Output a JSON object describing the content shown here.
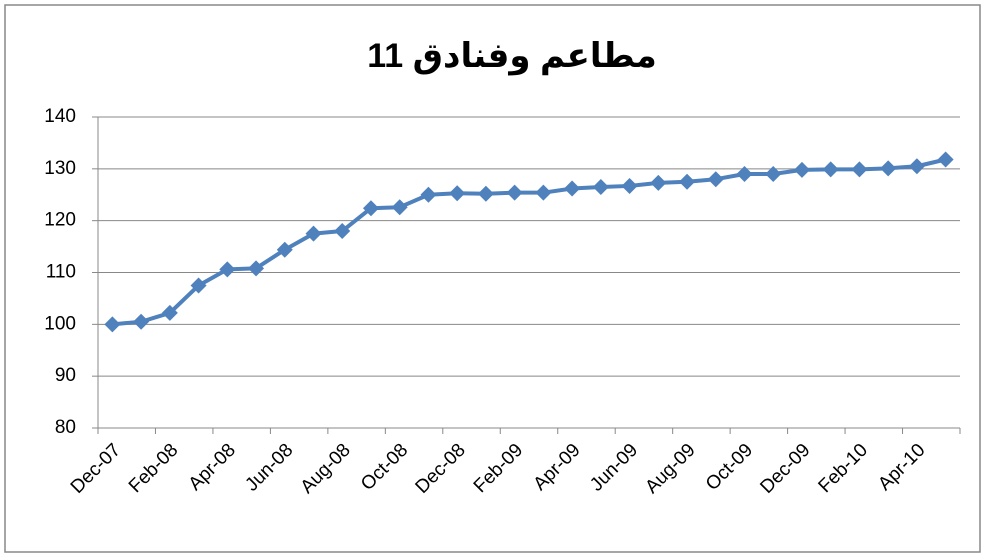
{
  "chart_data": {
    "type": "line",
    "title": "مطاعم وفنادق 11",
    "categories": [
      "Dec-07",
      null,
      "Feb-08",
      null,
      "Apr-08",
      null,
      "Jun-08",
      null,
      "Aug-08",
      null,
      "Oct-08",
      null,
      "Dec-08",
      null,
      "Feb-09",
      null,
      "Apr-09",
      null,
      "Jun-09",
      null,
      "Aug-09",
      null,
      "Oct-09",
      null,
      "Dec-09",
      null,
      "Feb-10",
      null,
      "Apr-10",
      null
    ],
    "series": [
      {
        "name": "مطاعم وفنادق",
        "color": "#4f81bd",
        "values": [
          100,
          100.5,
          102.2,
          107.5,
          110.6,
          110.8,
          114.4,
          117.5,
          118,
          122.4,
          122.6,
          125,
          125.3,
          125.2,
          125.4,
          125.4,
          126.2,
          126.5,
          126.7,
          127.3,
          127.5,
          128,
          129,
          129,
          129.8,
          129.9,
          129.9,
          130.1,
          130.5,
          131.8
        ]
      }
    ],
    "ylim": [
      80,
      140
    ],
    "yticks": [
      80,
      90,
      100,
      110,
      120,
      130,
      140
    ],
    "grid": true
  }
}
